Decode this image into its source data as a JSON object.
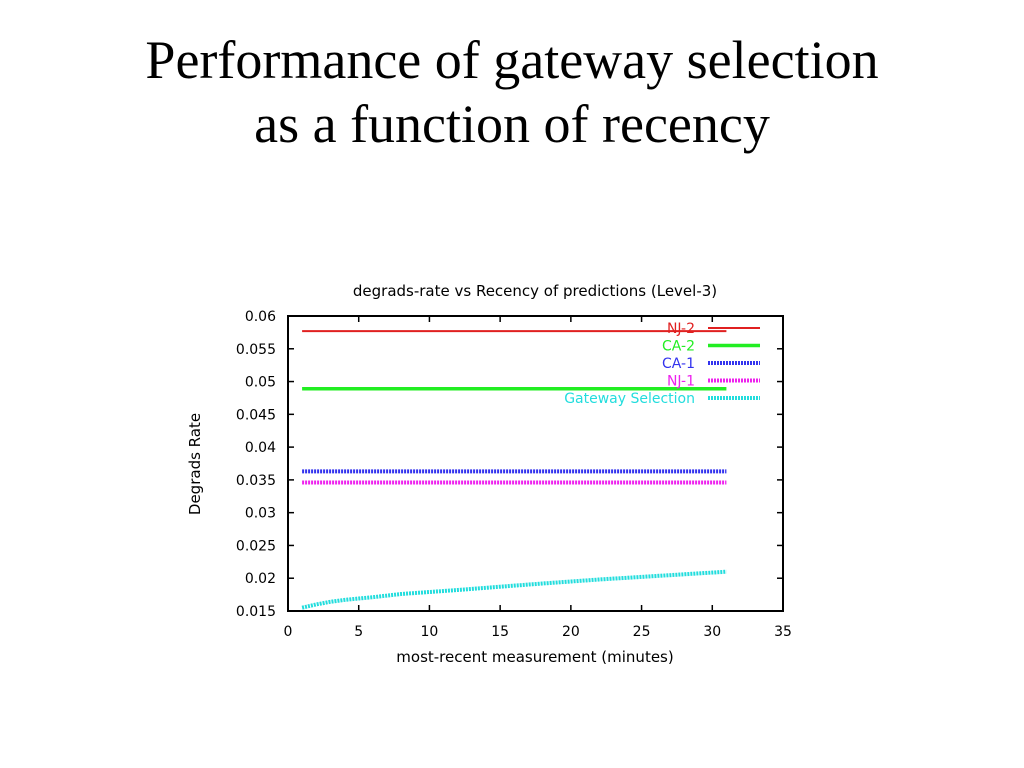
{
  "slide": {
    "title_line1": "Performance of gateway selection",
    "title_line2": "as a function of recency"
  },
  "chart_data": {
    "type": "line",
    "title": "degrads-rate vs Recency of predictions (Level-3)",
    "xlabel": "most-recent measurement (minutes)",
    "ylabel": "Degrads Rate",
    "xlim": [
      0,
      35
    ],
    "ylim": [
      0.015,
      0.06
    ],
    "xticks": [
      "0",
      "5",
      "10",
      "15",
      "20",
      "25",
      "30",
      "35"
    ],
    "yticks": [
      "0.015",
      "0.02",
      "0.025",
      "0.03",
      "0.035",
      "0.04",
      "0.045",
      "0.05",
      "0.055",
      "0.06"
    ],
    "grid": false,
    "legend_position": "top-right",
    "series": [
      {
        "name": "NJ-2",
        "color": "#e02020",
        "style": "solid",
        "x": [
          1,
          31
        ],
        "y": [
          0.0577,
          0.0577
        ]
      },
      {
        "name": "CA-2",
        "color": "#22ee22",
        "style": "solid",
        "x": [
          1,
          31
        ],
        "y": [
          0.0489,
          0.0489
        ]
      },
      {
        "name": "CA-1",
        "color": "#3333ee",
        "style": "dotted",
        "x": [
          1,
          31
        ],
        "y": [
          0.0363,
          0.0363
        ]
      },
      {
        "name": "NJ-1",
        "color": "#ee22ee",
        "style": "dotted",
        "x": [
          1,
          31
        ],
        "y": [
          0.0346,
          0.0346
        ]
      },
      {
        "name": "Gateway Selection",
        "color": "#22dddd",
        "style": "dotted",
        "x": [
          1,
          2,
          3,
          4,
          5,
          6,
          8,
          10,
          12,
          15,
          18,
          20,
          22,
          25,
          28,
          31
        ],
        "y": [
          0.0155,
          0.016,
          0.0164,
          0.0167,
          0.0169,
          0.0171,
          0.0176,
          0.0179,
          0.0182,
          0.0187,
          0.0192,
          0.0195,
          0.0198,
          0.0202,
          0.0206,
          0.021
        ]
      }
    ]
  }
}
